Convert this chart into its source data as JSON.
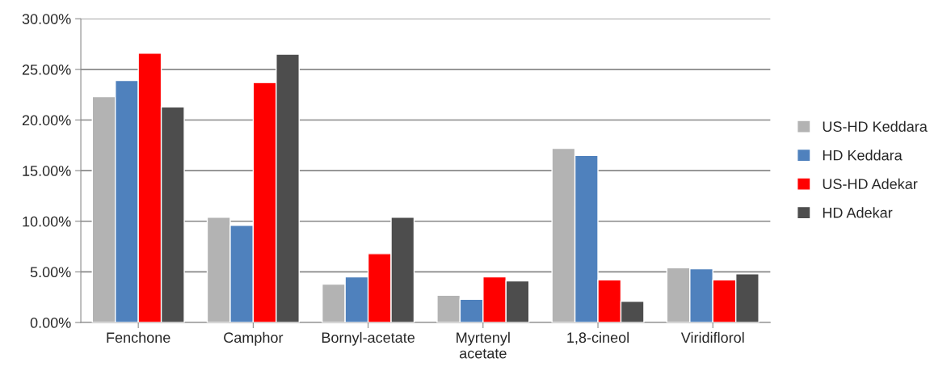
{
  "chart_data": {
    "type": "bar",
    "categories": [
      "Fenchone",
      "Camphor",
      "Bornyl-acetate",
      "Myrtenyl\nacetate",
      "1,8-cineol",
      "Viridiflorol"
    ],
    "series": [
      {
        "name": "US-HD Keddara",
        "color": "#b3b3b3",
        "values": [
          22.3,
          10.4,
          3.8,
          2.7,
          17.2,
          5.4
        ]
      },
      {
        "name": "HD Keddara",
        "color": "#4f81bd",
        "values": [
          23.9,
          9.6,
          4.5,
          2.3,
          16.5,
          5.3
        ]
      },
      {
        "name": "US-HD Adekar",
        "color": "#ff0000",
        "values": [
          26.6,
          23.7,
          6.8,
          4.5,
          4.2,
          4.2
        ]
      },
      {
        "name": "HD Adekar",
        "color": "#4d4d4d",
        "values": [
          21.3,
          26.5,
          10.4,
          4.1,
          2.1,
          4.8
        ]
      }
    ],
    "ylim": [
      0,
      30
    ],
    "yticks": [
      {
        "value": 0,
        "label": "0.00%"
      },
      {
        "value": 5,
        "label": "5.00%"
      },
      {
        "value": 10,
        "label": "10.00%"
      },
      {
        "value": 15,
        "label": "15.00%"
      },
      {
        "value": 20,
        "label": "20.00%"
      },
      {
        "value": 25,
        "label": "25.00%"
      },
      {
        "value": 30,
        "label": "30.00%"
      }
    ],
    "grid": "y",
    "legend": "right"
  }
}
